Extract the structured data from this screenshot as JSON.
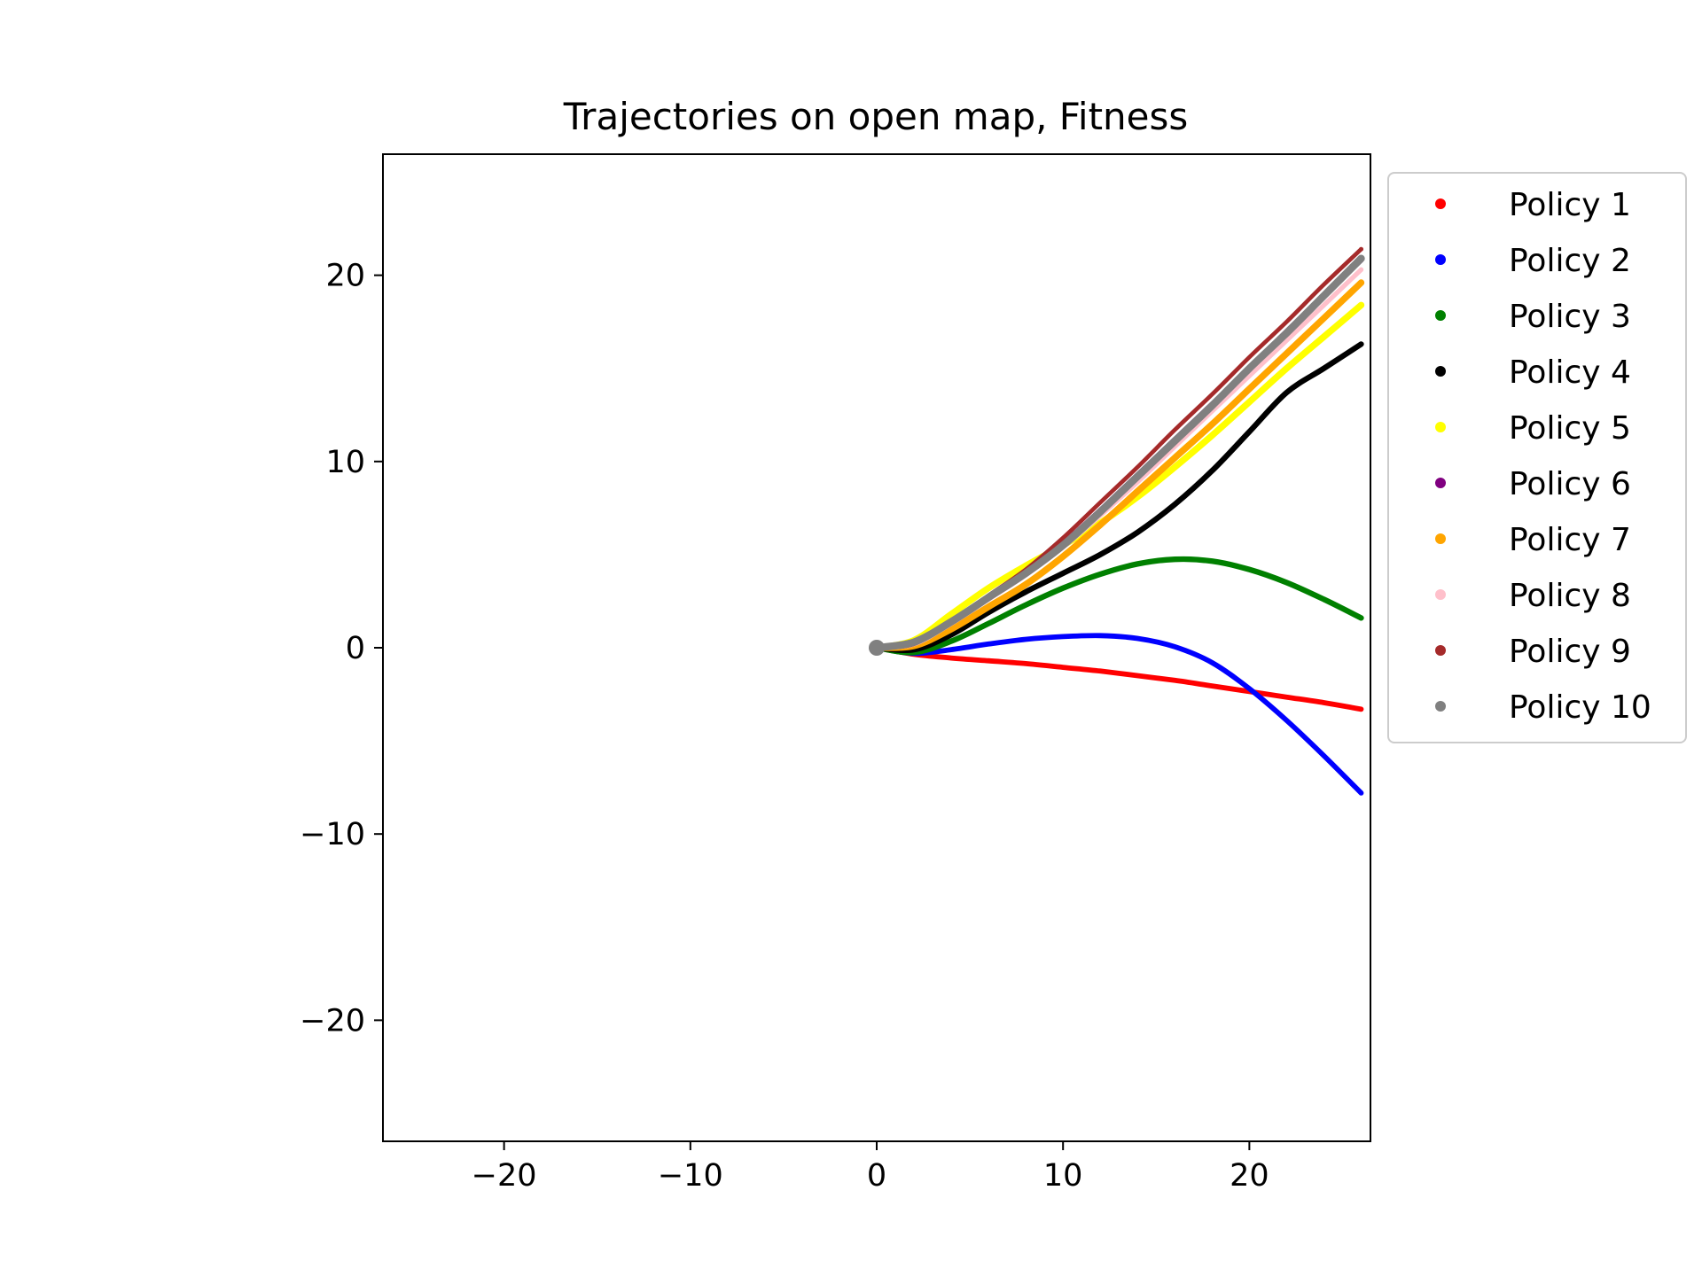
{
  "chart_data": {
    "type": "scatter",
    "title": "Trajectories on open map, Fitness",
    "xlabel": "",
    "ylabel": "",
    "xlim": [
      -26.5,
      26.5
    ],
    "ylim": [
      -26.5,
      26.5
    ],
    "xticks": [
      -20,
      -10,
      0,
      10,
      20
    ],
    "yticks": [
      -20,
      -10,
      0,
      10,
      20
    ],
    "xtick_labels": [
      "−20",
      "−10",
      "0",
      "10",
      "20"
    ],
    "ytick_labels": [
      "−20",
      "−10",
      "0",
      "10",
      "20"
    ],
    "grid": false,
    "legend_placement": "outside-right-top",
    "series": [
      {
        "name": "Policy 1",
        "color": "#ff0000",
        "width": 0.55,
        "x": [
          0,
          2,
          4,
          6,
          8,
          10,
          12,
          14,
          16,
          18,
          20,
          22,
          24,
          26
        ],
        "y": [
          0,
          -0.35,
          -0.55,
          -0.7,
          -0.85,
          -1.05,
          -1.25,
          -1.5,
          -1.75,
          -2.05,
          -2.35,
          -2.65,
          -2.95,
          -3.3
        ]
      },
      {
        "name": "Policy 2",
        "color": "#0000ff",
        "width": 0.55,
        "x": [
          0,
          2,
          4,
          6,
          8,
          10,
          12,
          14,
          16,
          18,
          20,
          22,
          24,
          26
        ],
        "y": [
          0,
          -0.3,
          -0.1,
          0.2,
          0.45,
          0.6,
          0.65,
          0.5,
          0.05,
          -0.8,
          -2.2,
          -3.9,
          -5.8,
          -7.8
        ]
      },
      {
        "name": "Policy 3",
        "color": "#008000",
        "width": 0.6,
        "x": [
          0,
          2,
          4,
          6,
          8,
          10,
          12,
          14,
          16,
          18,
          20,
          22,
          24,
          26
        ],
        "y": [
          0,
          -0.25,
          0.35,
          1.3,
          2.3,
          3.2,
          3.95,
          4.5,
          4.75,
          4.65,
          4.2,
          3.5,
          2.6,
          1.6
        ]
      },
      {
        "name": "Policy 4",
        "color": "#000000",
        "width": 0.6,
        "x": [
          0,
          2,
          4,
          6,
          8,
          10,
          12,
          14,
          16,
          18,
          20,
          22,
          24,
          26
        ],
        "y": [
          0,
          -0.1,
          0.7,
          1.9,
          3.0,
          4.0,
          5.0,
          6.2,
          7.7,
          9.5,
          11.6,
          13.7,
          15.0,
          16.3
        ]
      },
      {
        "name": "Policy 5",
        "color": "#ffff00",
        "width": 0.7,
        "x": [
          0,
          2,
          4,
          6,
          8,
          10,
          12,
          14,
          16,
          18,
          20,
          22,
          24,
          26
        ],
        "y": [
          0,
          0.4,
          1.8,
          3.2,
          4.4,
          5.5,
          6.7,
          8.1,
          9.7,
          11.4,
          13.2,
          15.0,
          16.7,
          18.4
        ]
      },
      {
        "name": "Policy 6",
        "color": "#800080",
        "width": 0.5,
        "x": [
          0,
          2,
          4,
          6,
          8,
          10,
          12,
          14,
          16,
          18,
          20,
          22,
          24,
          26
        ],
        "y": [
          0,
          0.2,
          1.3,
          2.7,
          4.0,
          5.6,
          7.4,
          9.3,
          11.2,
          13.1,
          15.0,
          17.0,
          18.9,
          20.8
        ]
      },
      {
        "name": "Policy 7",
        "color": "#ffa500",
        "width": 0.7,
        "x": [
          0,
          2,
          4,
          6,
          8,
          10,
          12,
          14,
          16,
          18,
          20,
          22,
          24,
          26
        ],
        "y": [
          0,
          0.1,
          1.0,
          2.2,
          3.4,
          4.9,
          6.6,
          8.4,
          10.2,
          12.0,
          13.9,
          15.8,
          17.7,
          19.6
        ]
      },
      {
        "name": "Policy 8",
        "color": "#ffc0cb",
        "width": 0.5,
        "x": [
          0,
          2,
          4,
          6,
          8,
          10,
          12,
          14,
          16,
          18,
          20,
          22,
          24,
          26
        ],
        "y": [
          0,
          0.2,
          1.3,
          2.6,
          3.9,
          5.4,
          7.1,
          8.9,
          10.8,
          12.7,
          14.6,
          16.5,
          18.4,
          20.3
        ]
      },
      {
        "name": "Policy 9",
        "color": "#a52a2a",
        "width": 0.45,
        "x": [
          0,
          2,
          4,
          6,
          8,
          10,
          12,
          14,
          16,
          18,
          20,
          22,
          24,
          26
        ],
        "y": [
          0,
          0.2,
          1.4,
          2.8,
          4.2,
          5.9,
          7.8,
          9.7,
          11.7,
          13.6,
          15.6,
          17.5,
          19.5,
          21.4
        ]
      },
      {
        "name": "Policy 10",
        "color": "#808080",
        "width": 0.8,
        "x": [
          0,
          2,
          4,
          6,
          8,
          10,
          12,
          14,
          16,
          18,
          20,
          22,
          24,
          26
        ],
        "y": [
          0,
          0.3,
          1.4,
          2.7,
          4.0,
          5.5,
          7.3,
          9.2,
          11.1,
          13.0,
          15.0,
          16.9,
          18.9,
          20.9
        ]
      }
    ]
  }
}
